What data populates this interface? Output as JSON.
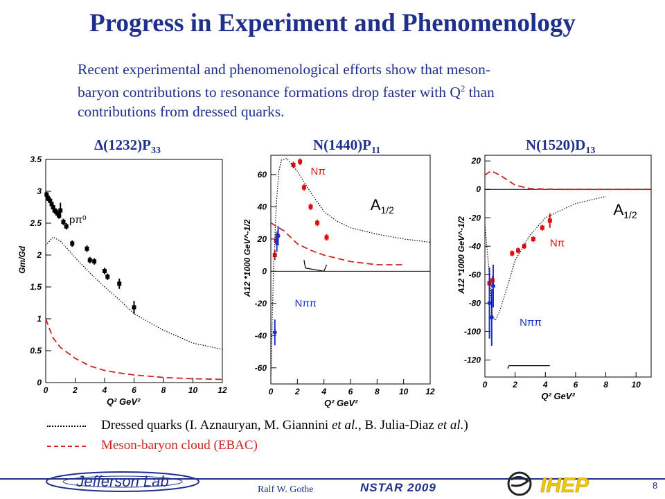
{
  "title": "Progress in Experiment and Phenomenology",
  "intro": {
    "line1": "Recent experimental and phenomenological efforts show that meson-",
    "line2a": "baryon contributions to resonance formations drop faster with Q",
    "line2_sup": "2",
    "line2b": " than",
    "line3": "contributions from dressed quarks."
  },
  "panels": [
    {
      "title_main": "Δ(1232)P",
      "title_sub": "33"
    },
    {
      "title_main": "N(1440)P",
      "title_sub": "11"
    },
    {
      "title_main": "N(1520)D",
      "title_sub": "13"
    }
  ],
  "legend": {
    "dressed": "Dressed quarks (I. Aznauryan, M. Giannini ",
    "dressed_etal1": "et al.",
    "dressed_mid": ", B. Julia-Diaz ",
    "dressed_etal2": "et al.",
    "dressed_end": ")",
    "meson": "Meson-baryon cloud (EBAC)"
  },
  "footer": {
    "author": "Ralf  W. Gothe",
    "conference": "NSTAR 2009",
    "logo_left": "Jefferson Lab",
    "logo_right": "IHEP",
    "page": "8"
  },
  "colors": {
    "title": "#1f2f8c",
    "meson": "#cc2222",
    "data_red": "#dd1111",
    "data_blue": "#1a2fd0",
    "data_black": "#000000"
  },
  "chart_data": [
    {
      "type": "scatter",
      "title": "Δ(1232)P33",
      "xlabel": "Q² GeV²",
      "ylabel": "Gm/Gd",
      "xlim": [
        0,
        12
      ],
      "ylim": [
        0,
        3.5
      ],
      "xticks": [
        "0",
        "2",
        "4",
        "6",
        "8",
        "10",
        "12"
      ],
      "yticks": [
        "0",
        "0.5",
        "1",
        "1.5",
        "2",
        "2.5",
        "3",
        "3.5"
      ],
      "annotations": [
        {
          "text": "pπ⁰",
          "x": 1.6,
          "y": 2.5
        }
      ],
      "series": [
        {
          "name": "pπ⁰",
          "color": "#000000",
          "marker": "square",
          "points": [
            [
              0.06,
              2.95
            ],
            [
              0.13,
              2.9
            ],
            [
              0.2,
              2.88
            ],
            [
              0.3,
              2.85
            ],
            [
              0.4,
              2.8
            ],
            [
              0.5,
              2.75
            ],
            [
              0.6,
              2.7
            ],
            [
              0.7,
              2.68
            ],
            [
              0.8,
              2.65
            ],
            [
              0.9,
              2.62
            ],
            [
              1.0,
              2.7
            ],
            [
              1.2,
              2.52
            ],
            [
              1.4,
              2.45
            ],
            [
              1.8,
              2.18
            ],
            [
              2.8,
              2.1
            ],
            [
              3.0,
              1.92
            ],
            [
              3.3,
              1.9
            ],
            [
              4.0,
              1.75
            ],
            [
              4.2,
              1.66
            ],
            [
              5.0,
              1.55
            ],
            [
              6.0,
              1.18
            ]
          ],
          "errors": [
            0.04,
            0.04,
            0.04,
            0.04,
            0.04,
            0.05,
            0.05,
            0.05,
            0.05,
            0.05,
            0.12,
            0.05,
            0.05,
            0.05,
            0.05,
            0.05,
            0.05,
            0.05,
            0.05,
            0.08,
            0.1
          ]
        },
        {
          "style": "dotted",
          "color": "#000000",
          "points": [
            [
              0.0,
              2.15
            ],
            [
              0.5,
              2.28
            ],
            [
              1.0,
              2.22
            ],
            [
              2.0,
              1.96
            ],
            [
              3.0,
              1.72
            ],
            [
              4.0,
              1.5
            ],
            [
              5.0,
              1.3
            ],
            [
              6.0,
              1.08
            ],
            [
              8.0,
              0.82
            ],
            [
              10.0,
              0.62
            ],
            [
              12.0,
              0.52
            ]
          ]
        },
        {
          "style": "dashed",
          "color": "#cc2222",
          "points": [
            [
              0.0,
              1.0
            ],
            [
              0.5,
              0.7
            ],
            [
              1.0,
              0.55
            ],
            [
              2.0,
              0.38
            ],
            [
              3.0,
              0.26
            ],
            [
              4.0,
              0.19
            ],
            [
              5.0,
              0.15
            ],
            [
              6.0,
              0.12
            ],
            [
              8.0,
              0.08
            ],
            [
              10.0,
              0.06
            ],
            [
              12.0,
              0.05
            ]
          ]
        }
      ]
    },
    {
      "type": "scatter",
      "title": "N(1440)P11",
      "xlabel": "Q² GeV²",
      "ylabel": "A12 *1000 GeV^-1/2",
      "xlim": [
        0,
        12
      ],
      "ylim": [
        -70,
        72
      ],
      "xticks": [
        "0",
        "2",
        "4",
        "6",
        "8",
        "10",
        "12"
      ],
      "yticks": [
        "-60",
        "-40",
        "-20",
        "0",
        "20",
        "40",
        "60"
      ],
      "annotations": [
        {
          "text": "A",
          "sub": "1/2",
          "x": 7.5,
          "y": 38
        },
        {
          "text": "Nπ",
          "x": 3.0,
          "y": 60,
          "color": "#dd1111"
        },
        {
          "text": "Nππ",
          "x": 1.8,
          "y": -22,
          "color": "#1a2fd0"
        }
      ],
      "series": [
        {
          "name": "Nπ",
          "color": "#dd1111",
          "marker": "square",
          "points": [
            [
              0.3,
              10
            ],
            [
              0.4,
              19
            ],
            [
              0.5,
              22
            ],
            [
              1.7,
              66
            ],
            [
              2.2,
              68
            ],
            [
              2.5,
              52
            ],
            [
              3.0,
              40
            ],
            [
              3.5,
              30
            ],
            [
              4.2,
              21
            ]
          ],
          "errors": [
            3,
            3,
            3,
            2,
            2,
            2,
            2,
            2,
            2
          ]
        },
        {
          "name": "Nππ",
          "color": "#1a2fd0",
          "marker": "circle",
          "points": [
            [
              0.3,
              -38
            ],
            [
              0.45,
              18
            ],
            [
              0.55,
              22
            ]
          ],
          "errors": [
            8,
            6,
            6
          ]
        },
        {
          "style": "dotted",
          "color": "#000000",
          "points": [
            [
              0.0,
              -65
            ],
            [
              0.2,
              0
            ],
            [
              0.4,
              40
            ],
            [
              0.6,
              62
            ],
            [
              0.8,
              69
            ],
            [
              1.2,
              70
            ],
            [
              2.0,
              62
            ],
            [
              3.0,
              49
            ],
            [
              4.0,
              37
            ],
            [
              5.0,
              31
            ],
            [
              6.0,
              27
            ],
            [
              8.0,
              23
            ],
            [
              10.0,
              20
            ],
            [
              12.0,
              18
            ]
          ]
        },
        {
          "style": "dashed",
          "color": "#cc2222",
          "points": [
            [
              0.0,
              30
            ],
            [
              1.0,
              25
            ],
            [
              2.0,
              17
            ],
            [
              3.0,
              13
            ],
            [
              4.0,
              10
            ],
            [
              6.0,
              6
            ],
            [
              8.0,
              4
            ],
            [
              10.0,
              4
            ]
          ]
        },
        {
          "style": "solid",
          "color": "#000000",
          "points": [
            [
              2.5,
              7
            ],
            [
              2.6,
              2
            ],
            [
              4.0,
              0
            ],
            [
              4.2,
              4
            ]
          ]
        }
      ]
    },
    {
      "type": "scatter",
      "title": "N(1520)D13",
      "xlabel": "Q² GeV²",
      "ylabel": "A12 *1000 GeV^-1/2",
      "xlim": [
        0,
        11
      ],
      "ylim": [
        -132,
        24
      ],
      "xticks": [
        "0",
        "2",
        "4",
        "6",
        "8",
        "10"
      ],
      "yticks": [
        "-120",
        "-100",
        "-80",
        "-60",
        "-40",
        "-20",
        "0",
        "20"
      ],
      "annotations": [
        {
          "text": "A",
          "sub": "1/2",
          "x": 8.5,
          "y": -18
        },
        {
          "text": "Nπ",
          "x": 4.3,
          "y": -40,
          "color": "#dd1111"
        },
        {
          "text": "Nππ",
          "x": 2.3,
          "y": -96,
          "color": "#1a2fd0"
        }
      ],
      "series": [
        {
          "name": "Nπ",
          "color": "#dd1111",
          "marker": "square",
          "points": [
            [
              0.3,
              -66
            ],
            [
              0.5,
              -64
            ],
            [
              1.8,
              -45
            ],
            [
              2.2,
              -43
            ],
            [
              2.6,
              -40
            ],
            [
              3.2,
              -35
            ],
            [
              3.8,
              -27
            ],
            [
              4.3,
              -22
            ]
          ],
          "errors": [
            3,
            3,
            2,
            2,
            2,
            2,
            2,
            5
          ]
        },
        {
          "name": "Nππ",
          "color": "#1a2fd0",
          "marker": "circle",
          "points": [
            [
              0.3,
              -80
            ],
            [
              0.45,
              -90
            ],
            [
              0.55,
              -68
            ]
          ],
          "errors": [
            25,
            20,
            15
          ]
        },
        {
          "style": "dotted",
          "color": "#000000",
          "points": [
            [
              0.0,
              -25
            ],
            [
              0.3,
              -60
            ],
            [
              0.5,
              -90
            ],
            [
              0.7,
              -92
            ],
            [
              1.0,
              -85
            ],
            [
              1.5,
              -68
            ],
            [
              2.0,
              -50
            ],
            [
              3.0,
              -32
            ],
            [
              4.0,
              -20
            ],
            [
              6.0,
              -10
            ],
            [
              8.0,
              -5
            ]
          ]
        },
        {
          "style": "dashed",
          "color": "#cc2222",
          "points": [
            [
              0.0,
              10
            ],
            [
              0.4,
              13
            ],
            [
              1.0,
              10
            ],
            [
              2.0,
              3
            ],
            [
              3.0,
              0.5
            ],
            [
              5.0,
              0
            ],
            [
              8.0,
              0
            ],
            [
              11.0,
              0
            ]
          ]
        },
        {
          "style": "solid",
          "color": "#000000",
          "points": [
            [
              1.5,
              -126
            ],
            [
              1.6,
              -124
            ],
            [
              4.3,
              -124
            ]
          ]
        }
      ]
    }
  ]
}
